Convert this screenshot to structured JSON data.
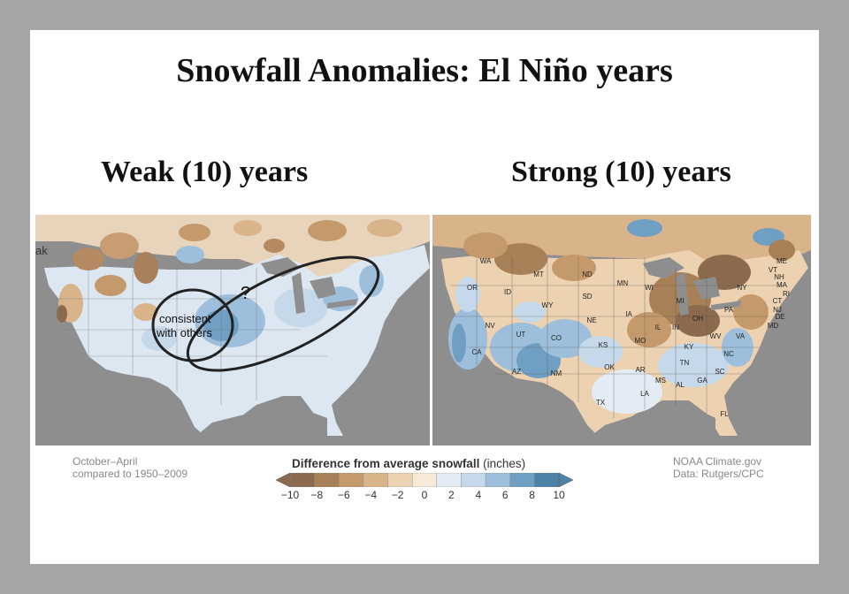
{
  "slide": {
    "title": "Snowfall Anomalies: El Niño years",
    "left_heading": "Weak (10) years",
    "right_heading": "Strong (10) years"
  },
  "left_map": {
    "edge_text": "ak",
    "annotation_question": "?",
    "annotation_line1": "consistent",
    "annotation_line2": "with others"
  },
  "right_map": {
    "states": [
      {
        "label": "WA"
      },
      {
        "label": "OR"
      },
      {
        "label": "ID"
      },
      {
        "label": "MT"
      },
      {
        "label": "ND"
      },
      {
        "label": "SD"
      },
      {
        "label": "WY"
      },
      {
        "label": "MN"
      },
      {
        "label": "WI"
      },
      {
        "label": "MI"
      },
      {
        "label": "NE"
      },
      {
        "label": "NV"
      },
      {
        "label": "UT"
      },
      {
        "label": "CO"
      },
      {
        "label": "IA"
      },
      {
        "label": "IL"
      },
      {
        "label": "IN"
      },
      {
        "label": "OH"
      },
      {
        "label": "PA"
      },
      {
        "label": "NY"
      },
      {
        "label": "ME"
      },
      {
        "label": "VT"
      },
      {
        "label": "NH"
      },
      {
        "label": "MA"
      },
      {
        "label": "RI"
      },
      {
        "label": "CT"
      },
      {
        "label": "NJ"
      },
      {
        "label": "DE"
      },
      {
        "label": "MD"
      },
      {
        "label": "WV"
      },
      {
        "label": "VA"
      },
      {
        "label": "KS"
      },
      {
        "label": "MO"
      },
      {
        "label": "KY"
      },
      {
        "label": "CA"
      },
      {
        "label": "AZ"
      },
      {
        "label": "NM"
      },
      {
        "label": "OK"
      },
      {
        "label": "AR"
      },
      {
        "label": "TN"
      },
      {
        "label": "NC"
      },
      {
        "label": "SC"
      },
      {
        "label": "GA"
      },
      {
        "label": "AL"
      },
      {
        "label": "MS"
      },
      {
        "label": "LA"
      },
      {
        "label": "TX"
      },
      {
        "label": "FL"
      }
    ]
  },
  "legend": {
    "title": "Difference from average snowfall",
    "unit": "(inches)",
    "ticks": [
      "−10",
      "−8",
      "−6",
      "−4",
      "−2",
      "0",
      "2",
      "4",
      "6",
      "8",
      "10"
    ],
    "colors": [
      "#8b6a4e",
      "#a88058",
      "#c49a6c",
      "#d9b48a",
      "#ecd2b0",
      "#f6e9d8",
      "#e3ecf5",
      "#c6d9ea",
      "#9dbfdb",
      "#6f9fc2",
      "#4d81a6"
    ]
  },
  "notes": {
    "left_line1": "October–April",
    "left_line2": "compared to 1950–2009",
    "right_line1": "NOAA Climate.gov",
    "right_line2": "Data: Rutgers/CPC"
  }
}
